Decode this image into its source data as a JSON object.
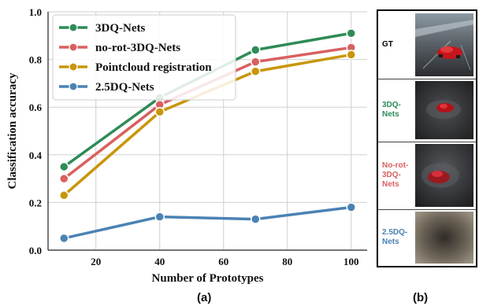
{
  "chart_data": {
    "type": "line",
    "xlabel": "Number of Prototypes",
    "ylabel": "Classification accuracy",
    "x": [
      10,
      40,
      70,
      100
    ],
    "xlim": [
      5,
      105
    ],
    "ylim": [
      0.0,
      1.0
    ],
    "xticks": [
      "20",
      "40",
      "60",
      "80",
      "100"
    ],
    "yticks": [
      "0.0",
      "0.2",
      "0.4",
      "0.6",
      "0.8",
      "1.0"
    ],
    "grid": true,
    "legend_position": "upper-left",
    "series": [
      {
        "name": "3DQ-Nets",
        "color": "#2e8b57",
        "values": [
          0.35,
          0.64,
          0.84,
          0.91
        ]
      },
      {
        "name": "no-rot-3DQ-Nets",
        "color": "#d9605f",
        "values": [
          0.3,
          0.61,
          0.79,
          0.85
        ]
      },
      {
        "name": "Pointcloud registration",
        "color": "#c8960a",
        "values": [
          0.23,
          0.58,
          0.75,
          0.82
        ]
      },
      {
        "name": "2.5DQ-Nets",
        "color": "#4a82b4",
        "values": [
          0.05,
          0.14,
          0.13,
          0.18
        ]
      }
    ]
  },
  "panel_a_label": "(a)",
  "panel_b_label": "(b)",
  "panel_b": {
    "rows": [
      {
        "label": "GT",
        "color": "#000000"
      },
      {
        "label": "3DQ-Nets",
        "color": "#2e8b57"
      },
      {
        "label": "No-rot-3DQ-Nets",
        "color": "#d9605f"
      },
      {
        "label": "2.5DQ-Nets",
        "color": "#4a82b4"
      }
    ]
  }
}
